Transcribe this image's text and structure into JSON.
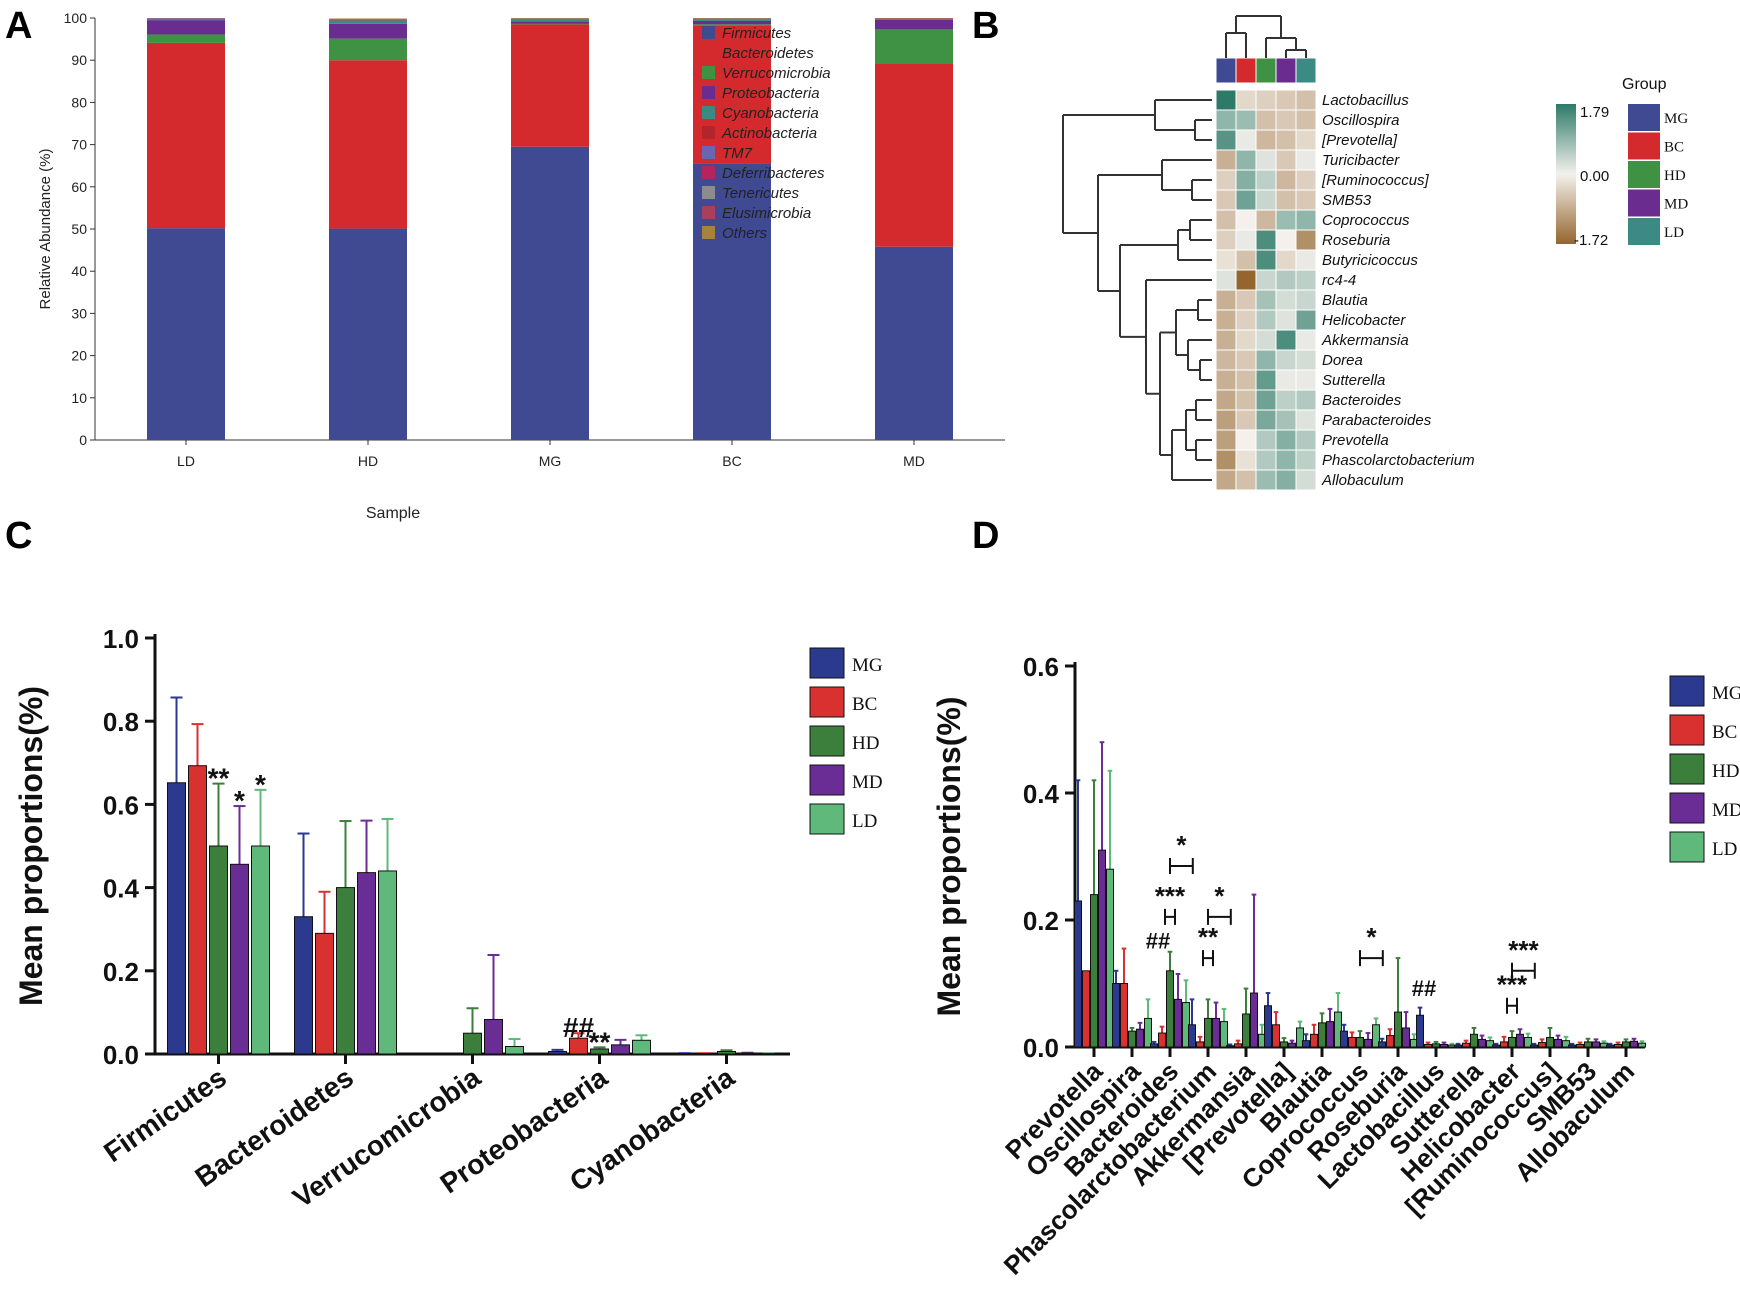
{
  "colors": {
    "MG": "#2b3a8f",
    "BC": "#d9312f",
    "HD": "#3c7f3c",
    "MD": "#6a2d95",
    "LD": "#5fb97a",
    "heat_high": "#2d7a68",
    "heat_mid": "#f4f1ec",
    "heat_low": "#94652e",
    "tree": "#333333",
    "axis": "#111111"
  },
  "chart_data": [
    {
      "panel": "A",
      "type": "bar",
      "stacked": true,
      "panel_label": "A",
      "xlabel": "Sample",
      "ylabel": "Relative Abundance (%)",
      "ylim": [
        0,
        100
      ],
      "yticks": [
        0,
        10,
        20,
        30,
        40,
        50,
        60,
        70,
        80,
        90,
        100
      ],
      "categories": [
        "LD",
        "HD",
        "MG",
        "BC",
        "MD"
      ],
      "series": [
        {
          "name": "Firmicutes",
          "color": "#3f4a92",
          "values": [
            50.2,
            50.1,
            69.5,
            65.5,
            45.8
          ]
        },
        {
          "name": "Bacteroidetes",
          "color": "#d42a2e",
          "values": [
            43.9,
            39.9,
            29.0,
            32.8,
            43.3
          ]
        },
        {
          "name": "Verrucomicrobia",
          "color": "#3f9243",
          "values": [
            2.0,
            5.1,
            0.1,
            0.2,
            8.2
          ]
        },
        {
          "name": "Proteobacteria",
          "color": "#6a2d8f",
          "values": [
            3.4,
            3.5,
            0.6,
            0.8,
            2.3
          ]
        },
        {
          "name": "Cyanobacteria",
          "color": "#3c8a84",
          "values": [
            0.2,
            0.8,
            0.4,
            0.3,
            0.1
          ]
        },
        {
          "name": "Actinobacteria",
          "color": "#b3242b",
          "values": [
            0.1,
            0.1,
            0.1,
            0.1,
            0.1
          ]
        },
        {
          "name": "TM7",
          "color": "#6b66b3",
          "values": [
            0.1,
            0.1,
            0.1,
            0.1,
            0.05
          ]
        },
        {
          "name": "Deferribacteres",
          "color": "#b5245a",
          "values": [
            0.05,
            0.05,
            0.05,
            0.05,
            0.05
          ]
        },
        {
          "name": "Tenericutes",
          "color": "#8c8c8c",
          "values": [
            0.05,
            0.05,
            0.05,
            0.05,
            0.05
          ]
        },
        {
          "name": "Elusimicrobia",
          "color": "#a8405d",
          "values": [
            0.0,
            0.1,
            0.0,
            0.0,
            0.0
          ]
        },
        {
          "name": "Others",
          "color": "#a88238",
          "values": [
            0.0,
            0.1,
            0.1,
            0.1,
            0.05
          ]
        }
      ]
    },
    {
      "panel": "B",
      "type": "heatmap",
      "panel_label": "B",
      "columns": [
        "MG",
        "BC",
        "HD",
        "MD",
        "LD"
      ],
      "rows": [
        "Lactobacillus",
        "Oscillospira",
        "[Prevotella]",
        "Turicibacter",
        "[Ruminococcus]",
        "SMB53",
        "Coprococcus",
        "Roseburia",
        "Butyricicoccus",
        "rc4-4",
        "Blautia",
        "Helicobacter",
        "Akkermansia",
        "Dorea",
        "Sutterella",
        "Bacteroides",
        "Parabacteroides",
        "Prevotella",
        "Phascolarctobacterium",
        "Allobaculum"
      ],
      "values": [
        [
          1.79,
          -0.3,
          -0.4,
          -0.5,
          -0.6
        ],
        [
          0.9,
          0.8,
          -0.6,
          -0.5,
          -0.6
        ],
        [
          1.4,
          0.1,
          -0.7,
          -0.6,
          -0.3
        ],
        [
          -0.8,
          0.9,
          0.2,
          -0.5,
          0.1
        ],
        [
          -0.4,
          1.0,
          0.5,
          -0.7,
          -0.4
        ],
        [
          -0.5,
          1.2,
          0.4,
          -0.6,
          -0.5
        ],
        [
          -0.6,
          0.0,
          -0.7,
          0.8,
          0.9
        ],
        [
          -0.4,
          0.1,
          1.5,
          0.0,
          -1.2
        ],
        [
          -0.2,
          -0.6,
          1.5,
          -0.3,
          0.1
        ],
        [
          0.2,
          -1.72,
          0.4,
          0.6,
          0.5
        ],
        [
          -0.8,
          -0.5,
          0.7,
          0.3,
          0.4
        ],
        [
          -0.8,
          -0.4,
          0.6,
          0.2,
          1.2
        ],
        [
          -0.8,
          -0.3,
          0.3,
          1.5,
          0.1
        ],
        [
          -0.7,
          -0.5,
          0.9,
          0.4,
          0.3
        ],
        [
          -0.8,
          -0.6,
          1.3,
          0.1,
          0.1
        ],
        [
          -0.9,
          -0.6,
          1.2,
          0.5,
          0.6
        ],
        [
          -1.0,
          -0.5,
          1.1,
          0.7,
          0.2
        ],
        [
          -1.0,
          0.0,
          0.6,
          1.0,
          0.6
        ],
        [
          -1.2,
          -0.2,
          0.6,
          0.9,
          0.5
        ],
        [
          -0.9,
          -0.6,
          0.8,
          1.0,
          0.3
        ]
      ],
      "color_scale": {
        "max": "1.79",
        "mid": "0.00",
        "min": "-1.72"
      },
      "group_legend_title": "Group",
      "group_colors": {
        "MG": "#3f4a92",
        "BC": "#d42a2e",
        "HD": "#3f9243",
        "MD": "#6a2d8f",
        "LD": "#3c8a84"
      }
    },
    {
      "panel": "C",
      "type": "bar",
      "panel_label": "C",
      "ylabel": "Mean proportions(%)",
      "ylim": [
        0,
        1.0
      ],
      "yticks": [
        "0.0",
        "0.2",
        "0.4",
        "0.6",
        "0.8",
        "1.0"
      ],
      "categories": [
        "Firmicutes",
        "Bacteroidetes",
        "Verrucomicrobia",
        "Proteobacteria",
        "Cyanobacteria"
      ],
      "legend": [
        "MG",
        "BC",
        "HD",
        "MD",
        "LD"
      ],
      "series": [
        {
          "name": "MG",
          "values": [
            0.652,
            0.33,
            0.0,
            0.006,
            0.001
          ],
          "err": [
            0.205,
            0.2,
            0.0,
            0.004,
            0.001
          ]
        },
        {
          "name": "BC",
          "values": [
            0.693,
            0.29,
            0.0,
            0.038,
            0.001
          ],
          "err": [
            0.1,
            0.1,
            0.0,
            0.012,
            0.001
          ]
        },
        {
          "name": "HD",
          "values": [
            0.5,
            0.4,
            0.05,
            0.012,
            0.006
          ],
          "err": [
            0.15,
            0.16,
            0.06,
            0.004,
            0.003
          ]
        },
        {
          "name": "MD",
          "values": [
            0.456,
            0.436,
            0.083,
            0.022,
            0.002
          ],
          "err": [
            0.14,
            0.125,
            0.155,
            0.012,
            0.001
          ]
        },
        {
          "name": "LD",
          "values": [
            0.5,
            0.44,
            0.018,
            0.033,
            0.001
          ],
          "err": [
            0.135,
            0.125,
            0.018,
            0.012,
            0.001
          ]
        }
      ],
      "annotations": [
        {
          "text": "**",
          "category": 0,
          "series": 2
        },
        {
          "text": "*",
          "category": 0,
          "series": 3
        },
        {
          "text": "*",
          "category": 0,
          "series": 4
        },
        {
          "text": "##",
          "category": 3,
          "series": 1
        },
        {
          "text": "**",
          "category": 3,
          "series": 2
        }
      ]
    },
    {
      "panel": "D",
      "type": "bar",
      "panel_label": "D",
      "ylabel": "Mean proportions(%)",
      "ylim": [
        0,
        0.6
      ],
      "yticks": [
        "0.0",
        "0.2",
        "0.4",
        "0.6"
      ],
      "categories": [
        "Prevotella",
        "Oscillospira",
        "Bacteroides",
        "Phascolarctobacterium",
        "Akkermansia",
        "[Prevotella]",
        "Blautia",
        "Coprococcus",
        "Roseburia",
        "Lactobacillus",
        "Sutterella",
        "Helicobacter",
        "[Ruminococcus]",
        "SMB53",
        "Allobaculum"
      ],
      "legend": [
        "MG",
        "BC",
        "HD",
        "MD",
        "LD"
      ],
      "series": [
        {
          "name": "MG",
          "values": [
            0.23,
            0.1,
            0.005,
            0.035,
            0.002,
            0.065,
            0.01,
            0.025,
            0.008,
            0.05,
            0.003,
            0.003,
            0.003,
            0.003,
            0.003
          ],
          "err": [
            0.19,
            0.02,
            0.003,
            0.04,
            0.002,
            0.02,
            0.01,
            0.01,
            0.005,
            0.012,
            0.002,
            0.002,
            0.002,
            0.002,
            0.002
          ]
        },
        {
          "name": "BC",
          "values": [
            0.12,
            0.1,
            0.022,
            0.008,
            0.005,
            0.035,
            0.02,
            0.015,
            0.018,
            0.004,
            0.006,
            0.008,
            0.007,
            0.004,
            0.004
          ],
          "err": [
            0.0,
            0.055,
            0.01,
            0.008,
            0.005,
            0.02,
            0.015,
            0.008,
            0.01,
            0.003,
            0.004,
            0.008,
            0.005,
            0.003,
            0.003
          ]
        },
        {
          "name": "HD",
          "values": [
            0.24,
            0.025,
            0.12,
            0.045,
            0.052,
            0.008,
            0.038,
            0.015,
            0.055,
            0.005,
            0.02,
            0.015,
            0.015,
            0.008,
            0.008
          ],
          "err": [
            0.18,
            0.005,
            0.03,
            0.03,
            0.04,
            0.006,
            0.015,
            0.01,
            0.085,
            0.003,
            0.01,
            0.01,
            0.015,
            0.005,
            0.004
          ]
        },
        {
          "name": "MD",
          "values": [
            0.31,
            0.028,
            0.075,
            0.045,
            0.085,
            0.006,
            0.04,
            0.012,
            0.03,
            0.004,
            0.012,
            0.02,
            0.012,
            0.008,
            0.009
          ],
          "err": [
            0.17,
            0.01,
            0.04,
            0.025,
            0.155,
            0.004,
            0.02,
            0.01,
            0.025,
            0.003,
            0.006,
            0.008,
            0.006,
            0.004,
            0.004
          ]
        },
        {
          "name": "LD",
          "values": [
            0.28,
            0.045,
            0.07,
            0.04,
            0.02,
            0.03,
            0.055,
            0.035,
            0.012,
            0.003,
            0.01,
            0.015,
            0.01,
            0.006,
            0.006
          ],
          "err": [
            0.155,
            0.03,
            0.035,
            0.02,
            0.015,
            0.01,
            0.03,
            0.01,
            0.008,
            0.002,
            0.005,
            0.006,
            0.006,
            0.003,
            0.003
          ]
        }
      ],
      "annotations": [
        {
          "text": "*",
          "category": 2,
          "bracket": [
            2,
            4
          ],
          "y": 0.285
        },
        {
          "text": "***",
          "category": 2,
          "bracket": [
            2,
            2
          ],
          "y": 0.205
        },
        {
          "text": "##",
          "category": 2,
          "series": 0,
          "y": 0.155
        },
        {
          "text": "*",
          "category": 3,
          "bracket": [
            3,
            4
          ],
          "y": 0.205
        },
        {
          "text": "**",
          "category": 3,
          "bracket": [
            3,
            3
          ],
          "y": 0.14
        },
        {
          "text": "*",
          "category": 7,
          "bracket": [
            7,
            8
          ],
          "y": 0.14
        },
        {
          "text": "##",
          "category": 9,
          "series": 0,
          "y": 0.08
        },
        {
          "text": "***",
          "category": 11,
          "bracket": [
            11,
            12
          ],
          "y": 0.12
        },
        {
          "text": "***",
          "category": 11,
          "bracket": [
            11,
            11
          ],
          "y": 0.065
        }
      ]
    }
  ]
}
